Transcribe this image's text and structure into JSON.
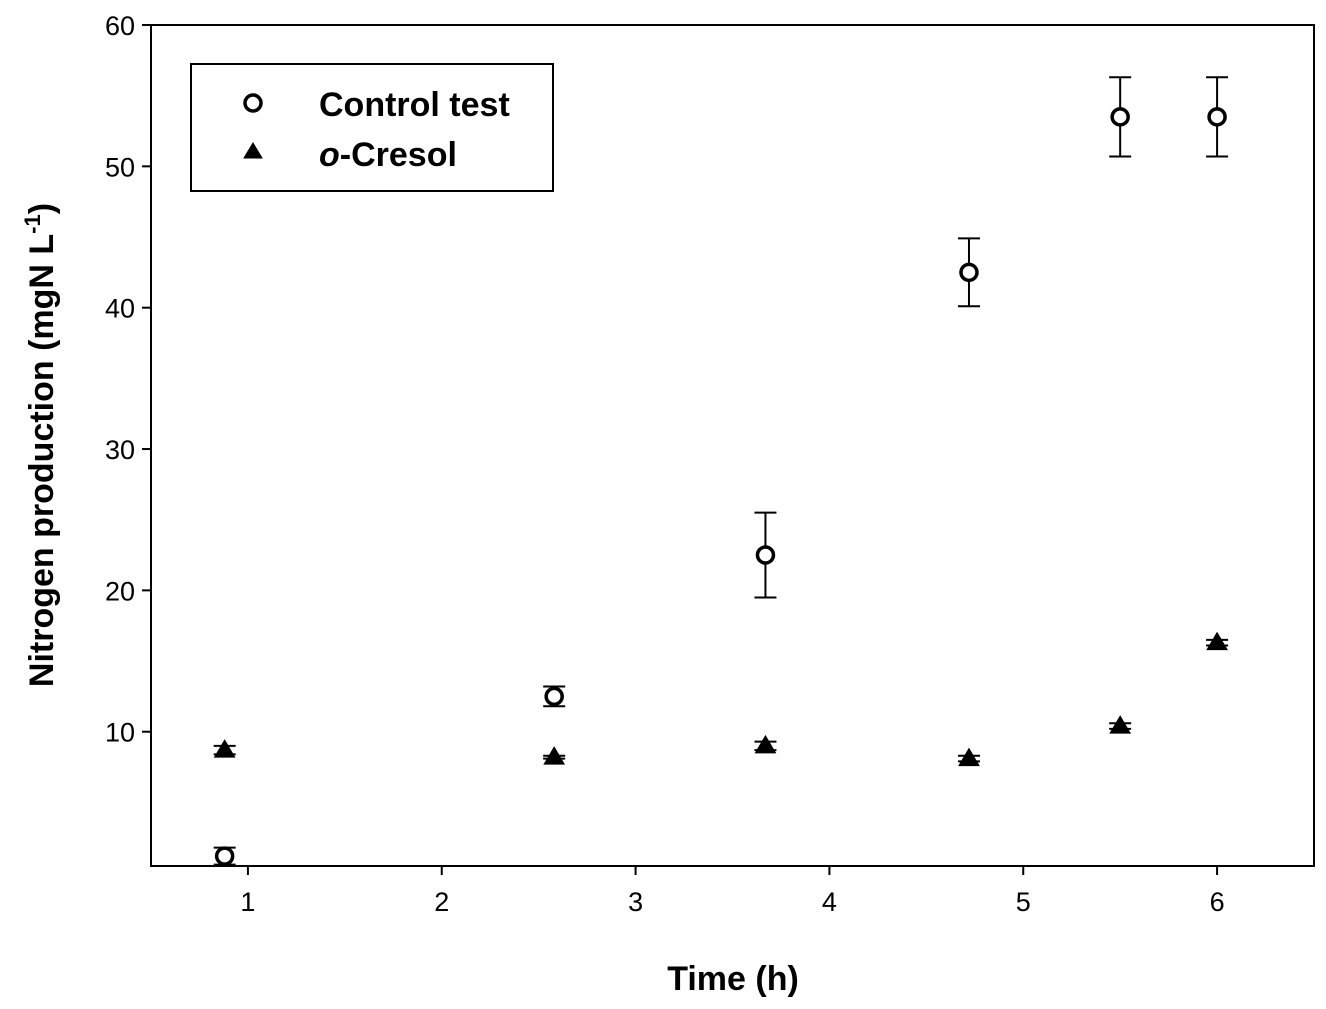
{
  "chart_data": {
    "type": "scatter",
    "xlabel": "Time (h)",
    "ylabel_main": "Nitrogen production (mgN L",
    "ylabel_sup": "-1",
    "ylabel_close": ")",
    "xlim": [
      0.5,
      6.5
    ],
    "ylim": [
      0.5,
      60
    ],
    "x_ticks": [
      1,
      2,
      3,
      4,
      5,
      6
    ],
    "y_ticks": [
      10,
      20,
      30,
      40,
      50,
      60
    ],
    "grid": false,
    "legend_position": "top-left",
    "series": [
      {
        "name": "Control test",
        "marker": "open-circle",
        "x": [
          0.88,
          2.58,
          3.67,
          4.72,
          5.5,
          6.0
        ],
        "y": [
          1.2,
          12.5,
          22.5,
          42.5,
          53.5,
          53.5
        ],
        "err": [
          0.6,
          0.7,
          3.0,
          2.4,
          2.8,
          2.8
        ]
      },
      {
        "name_italic": "o",
        "name_rest": "-Cresol",
        "marker": "filled-triangle",
        "x": [
          0.88,
          2.58,
          3.67,
          4.72,
          5.5,
          6.0
        ],
        "y": [
          8.7,
          8.2,
          9.0,
          8.1,
          10.4,
          16.3
        ],
        "err": [
          0.3,
          0.1,
          0.3,
          0.2,
          0.2,
          0.2
        ]
      }
    ]
  }
}
